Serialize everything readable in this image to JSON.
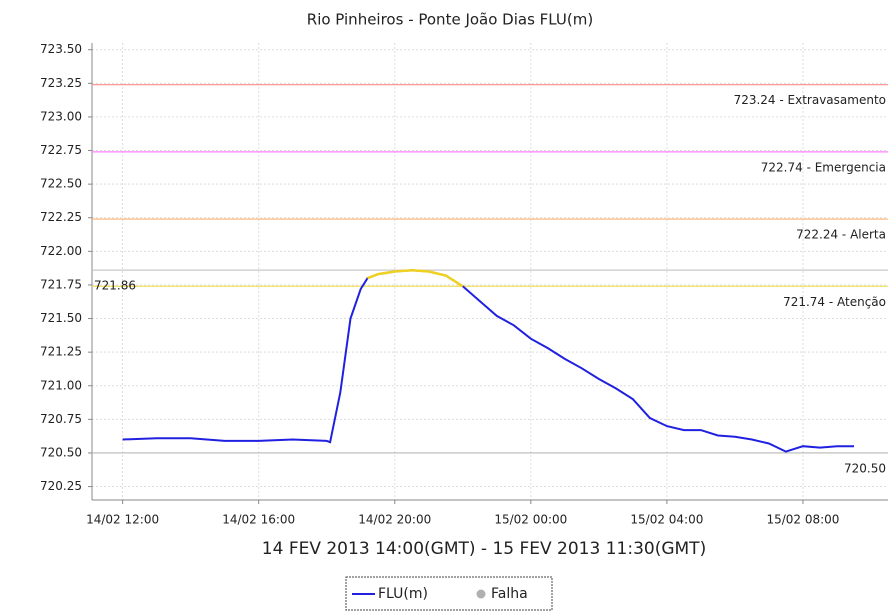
{
  "chart_data": {
    "type": "line",
    "title": "Rio Pinheiros - Ponte João Dias FLU(m)",
    "x_label": "14 FEV 2013 14:00(GMT) - 15 FEV 2013 11:30(GMT)",
    "x": [
      0,
      1,
      2,
      3,
      4,
      5,
      6,
      6.1,
      6.4,
      6.7,
      7.0,
      7.2,
      7.5,
      8,
      8.5,
      9,
      9.5,
      10,
      10.5,
      11,
      11.5,
      12,
      12.5,
      13,
      13.5,
      14,
      14.5,
      15,
      15.5,
      16,
      16.5,
      17,
      17.5,
      18,
      18.5,
      19,
      19.5,
      20,
      20.5,
      21,
      21.5
    ],
    "series": [
      {
        "name": "FLU(m)",
        "color": "#2020e0",
        "highlight_above": 721.74,
        "highlight_color": "#f0d020",
        "values": [
          720.6,
          720.61,
          720.61,
          720.59,
          720.59,
          720.6,
          720.59,
          720.58,
          720.95,
          721.5,
          721.72,
          721.8,
          721.83,
          721.85,
          721.86,
          721.85,
          721.82,
          721.74,
          721.63,
          721.52,
          721.45,
          721.35,
          721.28,
          721.2,
          721.13,
          721.05,
          720.98,
          720.9,
          720.76,
          720.7,
          720.67,
          720.67,
          720.63,
          720.62,
          720.6,
          720.57,
          720.51,
          720.55,
          720.54,
          720.55,
          720.55
        ]
      }
    ],
    "legend_extra": {
      "name": "Falha",
      "color": "#b0b0b0"
    },
    "reference_lines": [
      {
        "value": 723.24,
        "label": "723.24 - Extravasamento",
        "color": "#ff8a8a",
        "label_position": "right"
      },
      {
        "value": 722.74,
        "label": "722.74 - Emergencia",
        "color": "#ff80ff",
        "label_position": "right"
      },
      {
        "value": 722.24,
        "label": "722.24 - Alerta",
        "color": "#ffb070",
        "label_position": "right"
      },
      {
        "value": 721.74,
        "label": "721.74 - Atenção",
        "color": "#f0e060",
        "label_position": "right"
      },
      {
        "value": 721.86,
        "label": "721.86",
        "color": "#c8c8c8",
        "label_position": "left"
      },
      {
        "value": 720.5,
        "label": "720.50",
        "color": "#b8b8b8",
        "label_position": "right"
      }
    ],
    "xlim": [
      -0.9,
      22.5
    ],
    "xticks": [
      {
        "value": 0,
        "label": "14/02 12:00"
      },
      {
        "value": 4,
        "label": "14/02 16:00"
      },
      {
        "value": 8,
        "label": "14/02 20:00"
      },
      {
        "value": 12,
        "label": "15/02 00:00"
      },
      {
        "value": 16,
        "label": "15/02 04:00"
      },
      {
        "value": 20,
        "label": "15/02 08:00"
      }
    ],
    "ylim": [
      720.15,
      723.55
    ],
    "yticks": [
      {
        "value": 723.5,
        "label": "723.50"
      },
      723.25,
      {
        "value": 723,
        "label": "723.00"
      },
      722.75,
      {
        "value": 722.5,
        "label": "722.50"
      },
      722.25,
      {
        "value": 722,
        "label": "722.00"
      },
      721.75,
      {
        "value": 721.5,
        "label": "721.50"
      },
      721.25,
      {
        "value": 721,
        "label": "721.00"
      },
      720.75,
      {
        "value": 720.5,
        "label": "720.50"
      },
      720.25
    ],
    "grid": true
  }
}
